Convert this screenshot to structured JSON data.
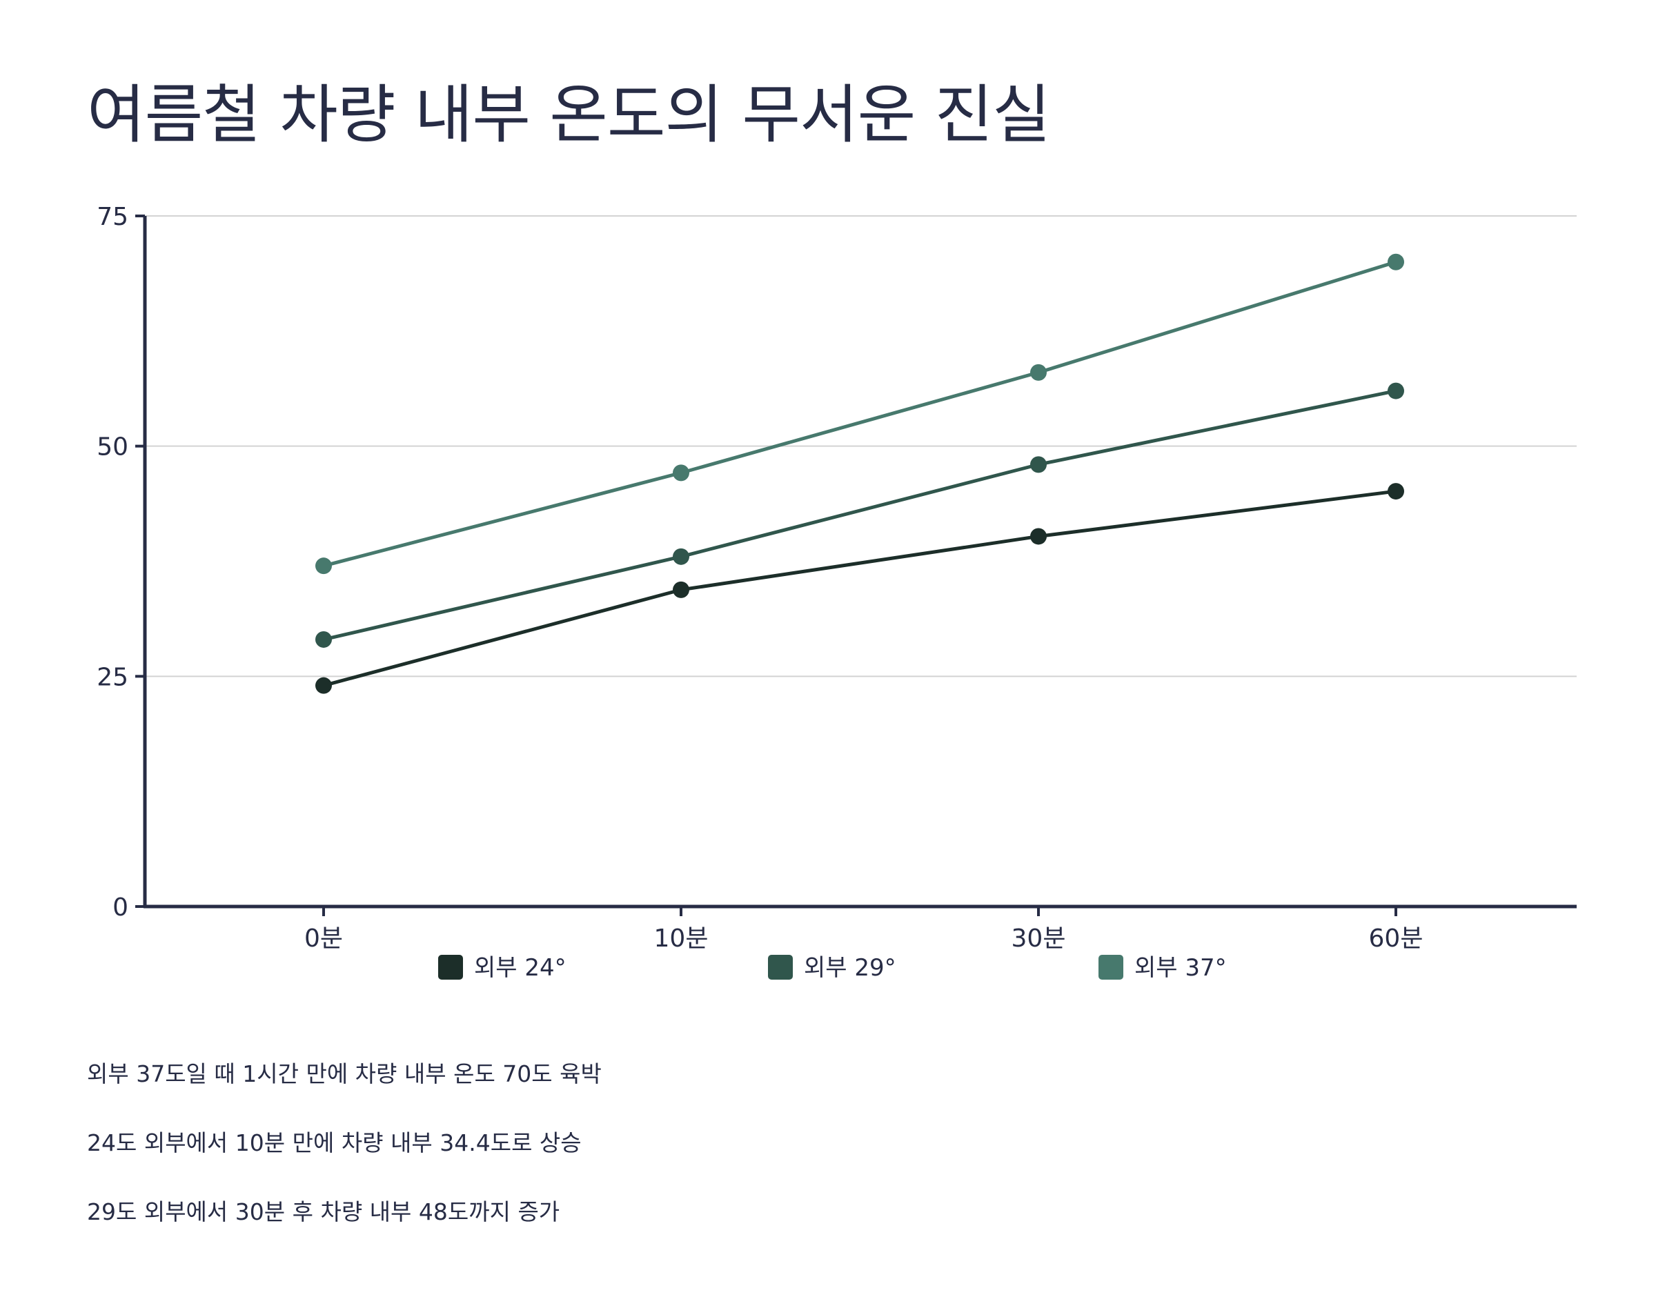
{
  "chart_data": {
    "type": "line",
    "title": "여름철 차량 내부 온도의 무서운 진실",
    "categories": [
      "0분",
      "10분",
      "30분",
      "60분"
    ],
    "ylim": [
      0,
      75
    ],
    "yticks": [
      0,
      25,
      50,
      75
    ],
    "grid": true,
    "legend_position": "bottom",
    "series": [
      {
        "name": "외부 24°",
        "color": "#1c2e29",
        "values": [
          24,
          34.4,
          40.2,
          45.1
        ]
      },
      {
        "name": "외부 29°",
        "color": "#30564c",
        "values": [
          29,
          38,
          48,
          56
        ]
      },
      {
        "name": "외부 37°",
        "color": "#47796d",
        "values": [
          37,
          47.1,
          58,
          70
        ]
      }
    ]
  },
  "annotations": [
    "외부 37도일 때 1시간 만에 차량 내부 온도 70도 육박",
    "24도 외부에서 10분 만에 차량 내부 34.4도로 상승",
    "29도 외부에서 30분 후 차량 내부 48도까지 증가"
  ],
  "colors": {
    "axis": "#272c45",
    "grid": "#d3d3d3",
    "text": "#272c45"
  }
}
